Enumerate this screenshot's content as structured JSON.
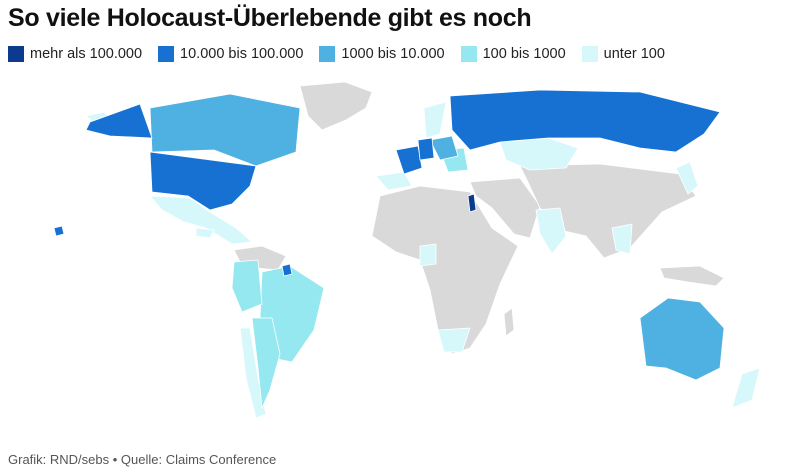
{
  "title": "So viele Holocaust-Überlebende gibt es noch",
  "legend": [
    {
      "label": "mehr als 100.000",
      "color": "#0b3a8f"
    },
    {
      "label": "10.000 bis 100.000",
      "color": "#1671d3"
    },
    {
      "label": "1000 bis 10.000",
      "color": "#4fb1e2"
    },
    {
      "label": "100 bis 1000",
      "color": "#95e8f0"
    },
    {
      "label": "unter 100",
      "color": "#d6f8fb"
    }
  ],
  "no_data_color": "#d9d9d9",
  "map_data": {
    "regions": [
      {
        "name": "Israel",
        "category": "mehr als 100.000"
      },
      {
        "name": "USA",
        "category": "10.000 bis 100.000"
      },
      {
        "name": "Russland",
        "category": "10.000 bis 100.000"
      },
      {
        "name": "Frankreich",
        "category": "10.000 bis 100.000"
      },
      {
        "name": "Deutschland",
        "category": "10.000 bis 100.000"
      },
      {
        "name": "Kanada",
        "category": "1000 bis 10.000"
      },
      {
        "name": "Australien",
        "category": "1000 bis 10.000"
      },
      {
        "name": "Brasilien",
        "category": "100 bis 1000"
      },
      {
        "name": "Argentinien",
        "category": "100 bis 1000"
      },
      {
        "name": "Kasachstan",
        "category": "unter 100"
      },
      {
        "name": "Mexiko",
        "category": "unter 100"
      }
    ]
  },
  "footer": "Grafik: RND/sebs • Quelle: Claims Conference"
}
